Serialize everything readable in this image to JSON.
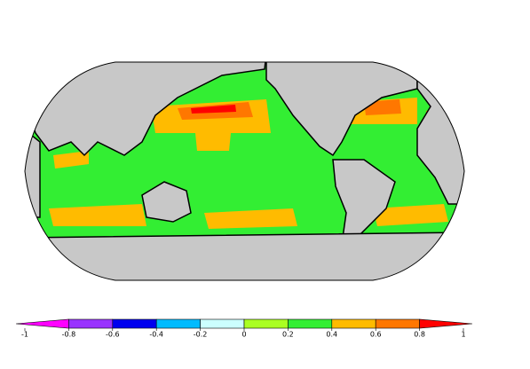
{
  "colorbar": {
    "ticks": [
      -1,
      -0.8,
      -0.6,
      -0.4,
      -0.2,
      0,
      0.2,
      0.4,
      0.6,
      0.8,
      1
    ],
    "colors": [
      "#ff00ff",
      "#9933ff",
      "#0000ee",
      "#00bbff",
      "#ccffff",
      "#aaff22",
      "#33ee33",
      "#ffbb00",
      "#ff7700",
      "#ff0000"
    ]
  }
}
